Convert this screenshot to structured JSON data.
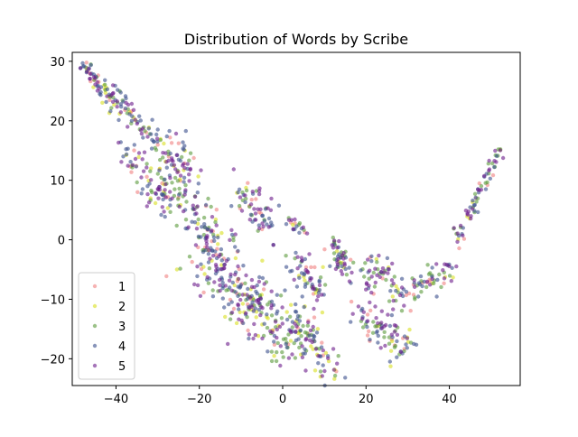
{
  "chart_data": {
    "type": "scatter",
    "title": "Distribution of Words by Scribe",
    "xlabel": "",
    "ylabel": "",
    "xlim": [
      -50.5,
      57
    ],
    "ylim": [
      -24.5,
      31.5
    ],
    "xticks": [
      -40,
      -20,
      0,
      20,
      40
    ],
    "yticks": [
      -20,
      -10,
      0,
      10,
      20,
      30
    ],
    "xtick_labels": [
      "−40",
      "−20",
      "0",
      "20",
      "40"
    ],
    "ytick_labels": [
      "−20",
      "−10",
      "0",
      "10",
      "20",
      "30"
    ],
    "grid": false,
    "legend_position": "lower-left",
    "series": [
      {
        "name": "1",
        "color": "#f08080",
        "alpha": 0.6,
        "count": 120
      },
      {
        "name": "2",
        "color": "#d8e020",
        "alpha": 0.6,
        "count": 120
      },
      {
        "name": "3",
        "color": "#5a9a3a",
        "alpha": 0.6,
        "count": 260
      },
      {
        "name": "4",
        "color": "#3b4f8c",
        "alpha": 0.6,
        "count": 360
      },
      {
        "name": "5",
        "color": "#6a1b8a",
        "alpha": 0.6,
        "count": 360
      }
    ],
    "clusters": [
      {
        "x": [
          -48,
          -40
        ],
        "y": [
          29,
          23
        ],
        "spread": 0.8,
        "weight": 5
      },
      {
        "x": [
          -40,
          -31
        ],
        "y": [
          24,
          17
        ],
        "spread": 1.0,
        "weight": 5
      },
      {
        "x": [
          -38,
          -28
        ],
        "y": [
          15,
          6
        ],
        "spread": 1.5,
        "weight": 6
      },
      {
        "x": [
          -27,
          -22
        ],
        "y": [
          16,
          10
        ],
        "spread": 1.6,
        "weight": 5
      },
      {
        "x": [
          -30,
          -13
        ],
        "y": [
          12,
          -2
        ],
        "spread": 2.2,
        "weight": 9
      },
      {
        "x": [
          -20,
          -5
        ],
        "y": [
          -1,
          -12
        ],
        "spread": 2.8,
        "weight": 12
      },
      {
        "x": [
          -12,
          3
        ],
        "y": [
          -8,
          -19
        ],
        "spread": 2.4,
        "weight": 10
      },
      {
        "x": [
          -10,
          -2
        ],
        "y": [
          8,
          2
        ],
        "spread": 1.8,
        "weight": 6
      },
      {
        "x": [
          1,
          6
        ],
        "y": [
          3,
          1
        ],
        "spread": 0.5,
        "weight": 2
      },
      {
        "x": [
          3,
          9
        ],
        "y": [
          -3,
          -10
        ],
        "spread": 1.4,
        "weight": 5
      },
      {
        "x": [
          2,
          12
        ],
        "y": [
          -12,
          -22
        ],
        "spread": 1.4,
        "weight": 6
      },
      {
        "x": [
          12,
          16
        ],
        "y": [
          -1,
          -5
        ],
        "spread": 1.2,
        "weight": 3
      },
      {
        "x": [
          18,
          30
        ],
        "y": [
          -12,
          -18
        ],
        "spread": 1.8,
        "weight": 7
      },
      {
        "x": [
          20,
          28
        ],
        "y": [
          -5,
          -9
        ],
        "spread": 1.8,
        "weight": 5
      },
      {
        "x": [
          28,
          40
        ],
        "y": [
          -10,
          -5
        ],
        "spread": 1.4,
        "weight": 5
      },
      {
        "x": [
          42,
          52
        ],
        "y": [
          0,
          15
        ],
        "spread": 0.7,
        "weight": 6
      }
    ]
  }
}
